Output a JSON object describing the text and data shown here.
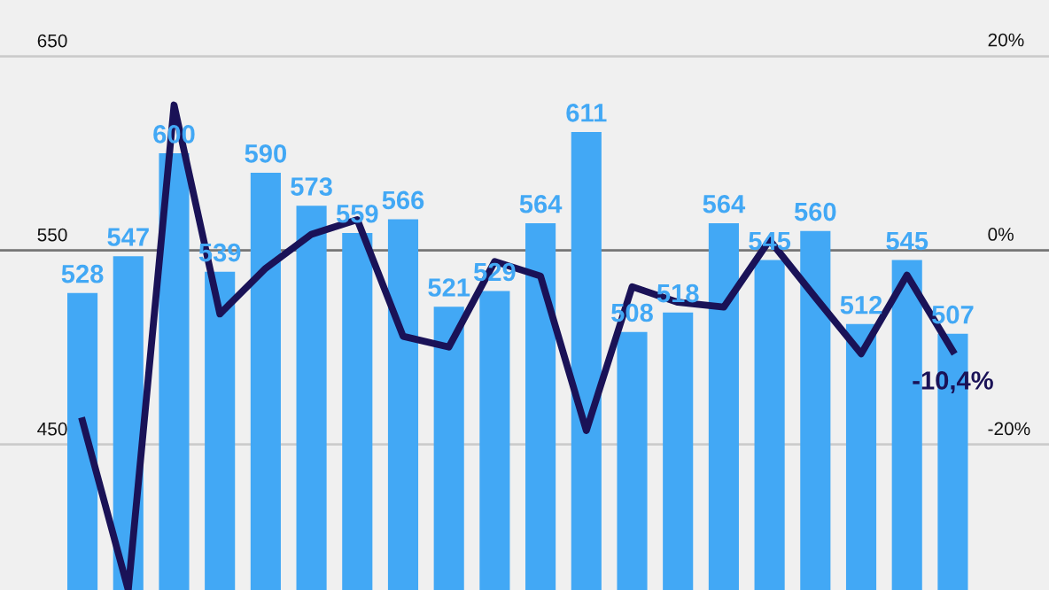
{
  "chart_data": {
    "type": "bar",
    "categories": [
      null,
      null,
      null,
      null,
      null,
      null,
      null,
      null,
      null,
      null,
      null,
      null,
      null,
      null,
      null,
      null,
      null,
      null,
      null,
      null
    ],
    "series": [
      {
        "color": "#42a8f5",
        "values": [
          528,
          547,
          600,
          539,
          590,
          573,
          559,
          566,
          521,
          529,
          564,
          611,
          508,
          518,
          564,
          545,
          560,
          512,
          545,
          507
        ],
        "value_labels": [
          "528",
          "547",
          "600",
          "539",
          "590",
          "573",
          "559",
          "566",
          "521",
          "529",
          "564",
          "611",
          "508",
          "518",
          "564",
          "545",
          "560",
          "512",
          "545",
          "507"
        ]
      },
      {
        "type": "line",
        "axis": "y2",
        "color": "#1a1257",
        "values": [
          -17.6,
          -35.0,
          14.9,
          -6.6,
          -1.9,
          1.6,
          3.1,
          -8.9,
          -10.0,
          -1.2,
          -2.7,
          -18.6,
          -3.8,
          -5.4,
          -5.9,
          1.0,
          -4.9,
          -10.7,
          -2.6,
          -10.4
        ],
        "value_labels": [
          null,
          null,
          null,
          null,
          null,
          null,
          null,
          null,
          null,
          null,
          null,
          null,
          null,
          null,
          null,
          null,
          null,
          null,
          null,
          "-10,4%"
        ]
      }
    ],
    "ylim": [
      375,
      679
    ],
    "yticks": [
      450,
      550,
      650
    ],
    "y2lim": [
      -35,
      25.7
    ],
    "y2ticks": [
      {
        "value": -20,
        "label": "-20%"
      },
      {
        "value": 0,
        "label": "0%"
      },
      {
        "value": 20,
        "label": "20%"
      }
    ],
    "ref_lines": [
      {
        "axis": "y",
        "value": 550,
        "color": "#777777"
      }
    ],
    "grid": "y",
    "marker": "none",
    "line_style": "solid"
  }
}
